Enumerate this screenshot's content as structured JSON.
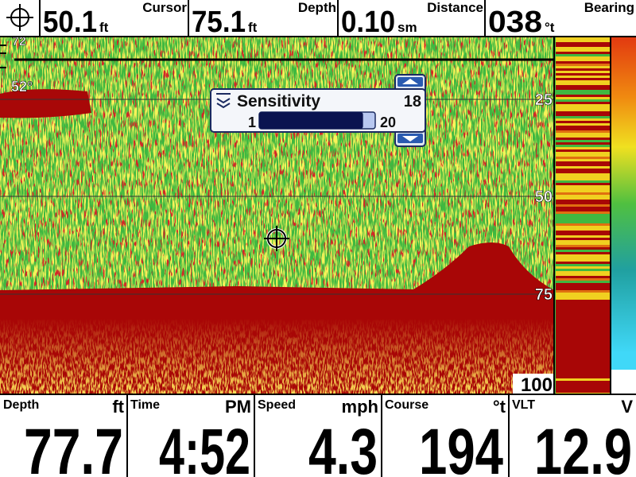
{
  "top_bar": [
    {
      "value": "50.1",
      "unit": "ft",
      "label": "Cursor"
    },
    {
      "value": "75.1",
      "unit": "ft",
      "label": "Depth"
    },
    {
      "value": "0.10",
      "unit": "sm",
      "label": "Distance"
    },
    {
      "value": "038",
      "unit": "°t",
      "label": "Bearing"
    }
  ],
  "sonar": {
    "depth_labels": [
      "72",
      "25",
      "50",
      "75",
      "100"
    ],
    "temperature": "52°"
  },
  "sensitivity": {
    "title": "Sensitivity",
    "value": 18,
    "min": 1,
    "max": 20
  },
  "bottom_bar": [
    {
      "label": "Depth",
      "unit": "ft",
      "value": "77.7"
    },
    {
      "label": "Time",
      "unit": "PM",
      "value": "4:52"
    },
    {
      "label": "Speed",
      "unit": "mph",
      "value": "4.3"
    },
    {
      "label": "Course",
      "unit": "°t",
      "value": "194"
    },
    {
      "label": "VLT",
      "unit": "V",
      "value": "12.9"
    }
  ]
}
